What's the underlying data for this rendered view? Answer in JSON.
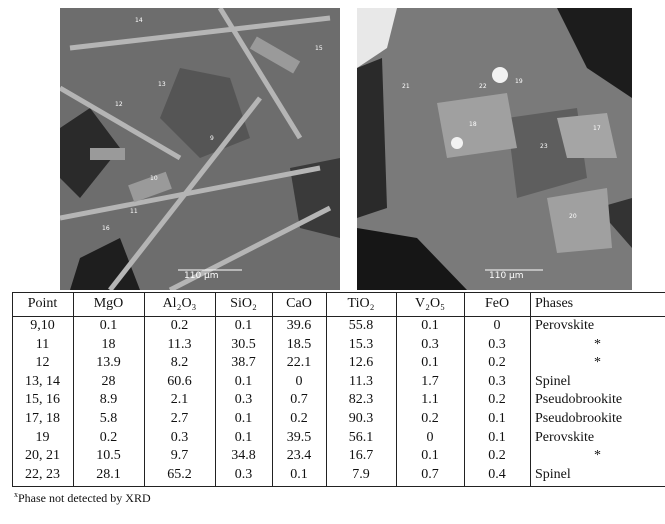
{
  "images": [
    {
      "labels": [
        "14",
        "15",
        "13",
        "12",
        "9",
        "10",
        "11",
        "16"
      ],
      "scale": "110 μm"
    },
    {
      "labels": [
        "21",
        "22",
        "19",
        "18",
        "17",
        "23",
        "20"
      ],
      "scale": "110 μm"
    }
  ],
  "table": {
    "header": [
      "Point",
      "MgO",
      "Al₂O₃",
      "SiO₂",
      "CaO",
      "TiO₂",
      "V₂O₅",
      "FeO",
      "Phases"
    ],
    "rows": [
      [
        "9,10",
        "0.1",
        "0.2",
        "0.1",
        "39.6",
        "55.8",
        "0.1",
        "0",
        "Perovskite"
      ],
      [
        "11",
        "18",
        "11.3",
        "30.5",
        "18.5",
        "15.3",
        "0.3",
        "0.3",
        "*"
      ],
      [
        "12",
        "13.9",
        "8.2",
        "38.7",
        "22.1",
        "12.6",
        "0.1",
        "0.2",
        "*"
      ],
      [
        "13, 14",
        "28",
        "60.6",
        "0.1",
        "0",
        "11.3",
        "1.7",
        "0.3",
        "Spinel"
      ],
      [
        "15, 16",
        "8.9",
        "2.1",
        "0.3",
        "0.7",
        "82.3",
        "1.1",
        "0.2",
        "Pseudobrookite"
      ],
      [
        "17, 18",
        "5.8",
        "2.7",
        "0.1",
        "0.2",
        "90.3",
        "0.2",
        "0.1",
        "Pseudobrookite"
      ],
      [
        "19",
        "0.2",
        "0.3",
        "0.1",
        "39.5",
        "56.1",
        "0",
        "0.1",
        "Perovskite"
      ],
      [
        "20, 21",
        "10.5",
        "9.7",
        "34.8",
        "23.4",
        "16.7",
        "0.1",
        "0.2",
        "*"
      ],
      [
        "22, 23",
        "28.1",
        "65.2",
        "0.3",
        "0.1",
        "7.9",
        "0.7",
        "0.4",
        "Spinel"
      ]
    ]
  },
  "footnote": {
    "marker": "x",
    "text": "Phase not detected by XRD"
  }
}
